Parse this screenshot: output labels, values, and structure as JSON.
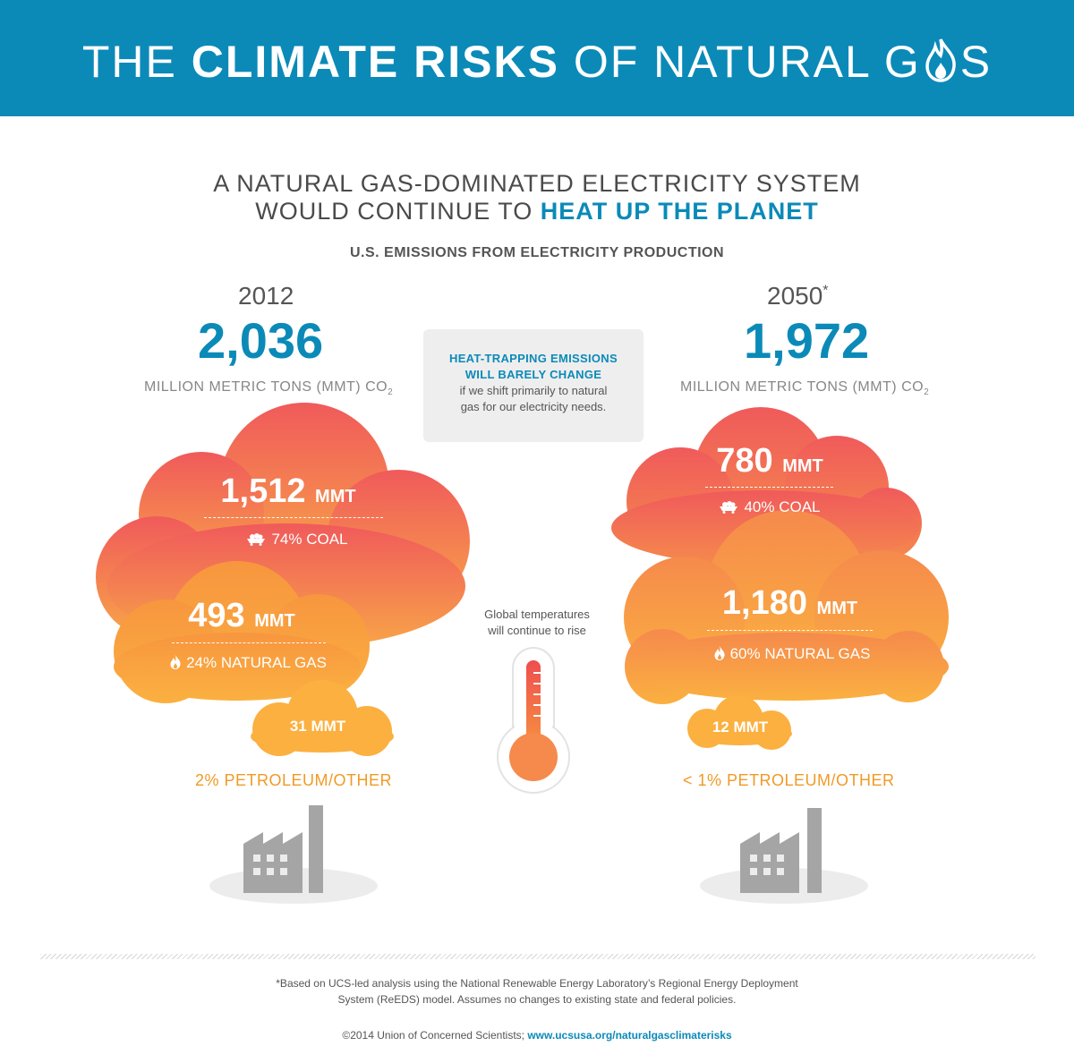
{
  "banner": {
    "title_pre": "THE ",
    "title_bold": "CLIMATE RISKS",
    "title_mid": " OF NATURAL G",
    "title_post": "S",
    "color": "#0b8ab8"
  },
  "headline": {
    "line1": "A NATURAL GAS-DOMINATED ELECTRICITY SYSTEM",
    "line2_pre": "WOULD CONTINUE TO ",
    "line2_highlight": "HEAT UP THE PLANET"
  },
  "subheading": "U.S. EMISSIONS FROM ELECTRICITY PRODUCTION",
  "left": {
    "year": "2012",
    "total": "2,036",
    "unit": "MILLION METRIC TONS (MMT) CO",
    "unit_sub": "2",
    "coal_value": "1,512",
    "coal_unit": "MMT",
    "coal_label": "74% COAL",
    "gas_value": "493",
    "gas_unit": "MMT",
    "gas_label": "24% NATURAL GAS",
    "petro_value": "31 MMT",
    "petro_label": "2% PETROLEUM/OTHER"
  },
  "right": {
    "year": "2050",
    "year_mark": "*",
    "total": "1,972",
    "unit": "MILLION METRIC TONS (MMT) CO",
    "unit_sub": "2",
    "coal_value": "780",
    "coal_unit": "MMT",
    "coal_label": "40% COAL",
    "gas_value": "1,180",
    "gas_unit": "MMT",
    "gas_label": "60% NATURAL GAS",
    "petro_value": "12 MMT",
    "petro_label": "< 1% PETROLEUM/OTHER"
  },
  "callout": {
    "heading_line1": "HEAT-TRAPPING EMISSIONS",
    "heading_line2": "WILL BARELY CHANGE",
    "body_line1": "if we shift primarily to natural",
    "body_line2": "gas for our electricity needs."
  },
  "thermometer": {
    "label_line1": "Global temperatures",
    "label_line2": "will continue to rise"
  },
  "footnote": {
    "line1": "*Based on UCS-led analysis using the National Renewable Energy Laboratory’s Regional Energy Deployment",
    "line2": "System (ReEDS) model. Assumes no changes to existing state and federal policies."
  },
  "credit": {
    "text": "©2014 Union of Concerned Scientists; ",
    "link": "www.ucsusa.org/naturalgasclimaterisks"
  },
  "icons": [
    "flame-icon",
    "coal-cart-icon",
    "thermometer-icon",
    "factory-icon"
  ],
  "colors": {
    "accent": "#0b8ab8",
    "cloud_top": "#f05a5b",
    "cloud_bottom": "#fbb040",
    "petro_label": "#f09a26"
  }
}
